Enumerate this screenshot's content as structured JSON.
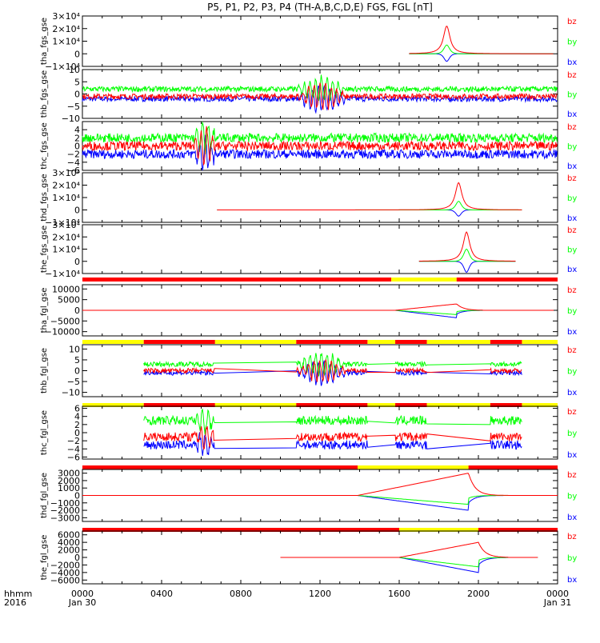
{
  "title": "P5, P1, P2, P3, P4 (TH-A,B,C,D,E) FGS, FGL [nT]",
  "colors": {
    "bz": "#ff0000",
    "by": "#00ff00",
    "bx": "#0000ff",
    "yellow": "#ffff00",
    "red": "#ff0000"
  },
  "chart_data": [
    {
      "type": "line",
      "ylabel": "tha_fgs_gse",
      "ylim": [
        -10000,
        30000
      ],
      "ytick_labels": [
        "3×10⁴",
        "2×10⁴",
        "1×10⁴",
        "0",
        "−1×10⁴"
      ],
      "ytick_values": [
        30000,
        20000,
        10000,
        0,
        -10000
      ],
      "legend": [
        "bz",
        "by",
        "bx"
      ],
      "kind": "spike",
      "center_hour": 18.4,
      "width_hours": 0.8,
      "start_hour": 16.5,
      "end_hour": 23.8,
      "peak": {
        "bz": 22000,
        "by": 7000,
        "bx": -6000
      }
    },
    {
      "type": "line",
      "ylabel": "thb_fgs_gse",
      "ylim": [
        -10,
        10
      ],
      "ytick_labels": [
        "10",
        "5",
        "0",
        "−5",
        "−10"
      ],
      "ytick_values": [
        10,
        5,
        0,
        -5,
        -10
      ],
      "legend": [
        "bz",
        "by",
        "bx"
      ],
      "kind": "noisy",
      "start_hour": 0,
      "end_hour": 24,
      "baseline": {
        "by": 2,
        "bz": -1,
        "bx": -2
      },
      "osc": {
        "from": 10.8,
        "to": 13.4,
        "amp": 5
      }
    },
    {
      "type": "line",
      "ylabel": "thc_fgs_gse",
      "ylim": [
        -6,
        6
      ],
      "ytick_labels": [
        "4",
        "2",
        "0",
        "−2",
        "−4",
        "−6"
      ],
      "ytick_values": [
        4,
        2,
        0,
        -2,
        -4,
        -6
      ],
      "legend": [
        "bz",
        "by",
        "bx"
      ],
      "kind": "noisy",
      "start_hour": 0,
      "end_hour": 24,
      "baseline": {
        "by": 2,
        "bz": 0,
        "bx": -2
      },
      "osc": {
        "from": 5.6,
        "to": 6.8,
        "amp": 4
      }
    },
    {
      "type": "line",
      "ylabel": "thd_fgs_gse",
      "ylim": [
        -10000,
        30000
      ],
      "ytick_labels": [
        "3×10⁴",
        "2×10⁴",
        "1×10⁴",
        "0",
        "−1×10⁴"
      ],
      "ytick_values": [
        30000,
        20000,
        10000,
        0,
        -10000
      ],
      "legend": [
        "bz",
        "by",
        "bx"
      ],
      "kind": "spike",
      "center_hour": 19.0,
      "width_hours": 0.8,
      "start_hour": 6.8,
      "end_hour": 22.2,
      "peak": {
        "bz": 22000,
        "by": 7000,
        "bx": -5000
      }
    },
    {
      "type": "line",
      "ylabel": "the_fgs_gse",
      "ylim": [
        -10000,
        30000
      ],
      "ytick_labels": [
        "3×10⁴",
        "2×10⁴",
        "1×10⁴",
        "0",
        "−1×10⁴"
      ],
      "ytick_values": [
        30000,
        20000,
        10000,
        0,
        -10000
      ],
      "legend": [
        "bz",
        "by",
        "bx"
      ],
      "kind": "spike",
      "center_hour": 19.4,
      "width_hours": 0.8,
      "start_hour": 17.0,
      "end_hour": 21.9,
      "peak": {
        "bz": 24000,
        "by": 10000,
        "bx": -9000
      }
    },
    {
      "type": "line",
      "ylabel": "tha_fgl_gse",
      "ylim": [
        -12000,
        12000
      ],
      "ytick_labels": [
        "10000",
        "5000",
        "0",
        "−5000",
        "−10000"
      ],
      "ytick_values": [
        10000,
        5000,
        0,
        -5000,
        -10000
      ],
      "legend": [
        "bz",
        "by",
        "bx"
      ],
      "kind": "ramp",
      "start_hour": 0,
      "end_hour": 23.8,
      "ramp_from": 15.8,
      "ramp_to": 18.9,
      "after_to": 20.2,
      "peak": {
        "bz": 3000,
        "by": -2000,
        "bx": -3500
      },
      "bar": [
        {
          "from": 0,
          "to": 15.6,
          "color": "red"
        },
        {
          "from": 15.6,
          "to": 18.9,
          "color": "yellow"
        },
        {
          "from": 18.9,
          "to": 24,
          "color": "red"
        }
      ]
    },
    {
      "type": "line",
      "ylabel": "thb_fgl_gse",
      "ylim": [
        -12,
        12
      ],
      "ytick_labels": [
        "10",
        "5",
        "0",
        "−5",
        "−10"
      ],
      "ytick_values": [
        10,
        5,
        0,
        -5,
        -10
      ],
      "legend": [
        "bz",
        "by",
        "bx"
      ],
      "kind": "gapped",
      "start_hour": 3.1,
      "end_hour": 22.2,
      "segments": [
        [
          3.1,
          6.7
        ],
        [
          10.8,
          14.4
        ],
        [
          15.8,
          17.4
        ],
        [
          20.6,
          22.2
        ]
      ],
      "osc": {
        "from": 10.8,
        "to": 13.4,
        "amp": 5
      },
      "baseline": {
        "by": 3,
        "bz": 0,
        "bx": -1
      },
      "bar": [
        {
          "from": 0,
          "to": 3.1,
          "color": "yellow"
        },
        {
          "from": 3.1,
          "to": 6.7,
          "color": "red"
        },
        {
          "from": 6.7,
          "to": 10.8,
          "color": "yellow"
        },
        {
          "from": 10.8,
          "to": 14.4,
          "color": "red"
        },
        {
          "from": 14.4,
          "to": 15.8,
          "color": "yellow"
        },
        {
          "from": 15.8,
          "to": 17.4,
          "color": "red"
        },
        {
          "from": 17.4,
          "to": 20.6,
          "color": "yellow"
        },
        {
          "from": 20.6,
          "to": 22.2,
          "color": "red"
        },
        {
          "from": 22.2,
          "to": 24,
          "color": "yellow"
        }
      ]
    },
    {
      "type": "line",
      "ylabel": "thc_fgl_gse",
      "ylim": [
        -6.5,
        6.5
      ],
      "ytick_labels": [
        "6",
        "4",
        "2",
        "0",
        "−2",
        "−4",
        "−6"
      ],
      "ytick_values": [
        6,
        4,
        2,
        0,
        -2,
        -4,
        -6
      ],
      "legend": [
        "bz",
        "by",
        "bx"
      ],
      "kind": "gapped",
      "start_hour": 3.1,
      "end_hour": 22.2,
      "segments": [
        [
          3.1,
          6.7
        ],
        [
          10.8,
          14.4
        ],
        [
          15.8,
          17.4
        ],
        [
          20.6,
          22.2
        ]
      ],
      "osc": {
        "from": 5.6,
        "to": 6.7,
        "amp": 3
      },
      "baseline": {
        "by": 3,
        "bz": -1,
        "bx": -3
      },
      "bar": [
        {
          "from": 0,
          "to": 3.1,
          "color": "yellow"
        },
        {
          "from": 3.1,
          "to": 6.7,
          "color": "red"
        },
        {
          "from": 6.7,
          "to": 10.8,
          "color": "yellow"
        },
        {
          "from": 10.8,
          "to": 14.4,
          "color": "red"
        },
        {
          "from": 14.4,
          "to": 15.8,
          "color": "yellow"
        },
        {
          "from": 15.8,
          "to": 17.4,
          "color": "red"
        },
        {
          "from": 17.4,
          "to": 20.6,
          "color": "yellow"
        },
        {
          "from": 20.6,
          "to": 22.2,
          "color": "red"
        },
        {
          "from": 22.2,
          "to": 24,
          "color": "yellow"
        }
      ]
    },
    {
      "type": "line",
      "ylabel": "thd_fgl_gse",
      "ylim": [
        -3500,
        3500
      ],
      "ytick_labels": [
        "3000",
        "2000",
        "1000",
        "0",
        "−1000",
        "−2000",
        "−3000"
      ],
      "ytick_values": [
        3000,
        2000,
        1000,
        0,
        -1000,
        -2000,
        -3000
      ],
      "legend": [
        "bz",
        "by",
        "bx"
      ],
      "kind": "ramp",
      "start_hour": 0,
      "end_hour": 24,
      "ramp_from": 13.9,
      "ramp_to": 19.5,
      "after_to": 21.5,
      "peak": {
        "bz": 3000,
        "by": -1200,
        "bx": -2000
      },
      "bar": [
        {
          "from": 0,
          "to": 13.9,
          "color": "red"
        },
        {
          "from": 13.9,
          "to": 19.5,
          "color": "yellow"
        },
        {
          "from": 19.5,
          "to": 24,
          "color": "red"
        }
      ]
    },
    {
      "type": "line",
      "ylabel": "the_fgl_gse",
      "ylim": [
        -7000,
        7000
      ],
      "ytick_labels": [
        "6000",
        "4000",
        "2000",
        "0",
        "−2000",
        "−4000",
        "−6000"
      ],
      "ytick_values": [
        6000,
        4000,
        2000,
        0,
        -2000,
        -4000,
        -6000
      ],
      "legend": [
        "bz",
        "by",
        "bx"
      ],
      "kind": "ramp",
      "start_hour": 10.0,
      "end_hour": 23.0,
      "ramp_from": 16.0,
      "ramp_to": 20.0,
      "after_to": 21.5,
      "peak": {
        "bz": 4000,
        "by": -2500,
        "bx": -4000
      },
      "bar": [
        {
          "from": 0,
          "to": 16.0,
          "color": "red"
        },
        {
          "from": 16.0,
          "to": 20.0,
          "color": "yellow"
        },
        {
          "from": 20.0,
          "to": 24,
          "color": "red"
        }
      ]
    }
  ],
  "xaxis": {
    "xlim_hours": [
      0,
      24
    ],
    "ticks": [
      {
        "hour": 0,
        "label": "0000"
      },
      {
        "hour": 4,
        "label": "0400"
      },
      {
        "hour": 8,
        "label": "0800"
      },
      {
        "hour": 12,
        "label": "1200"
      },
      {
        "hour": 16,
        "label": "1600"
      },
      {
        "hour": 20,
        "label": "2000"
      },
      {
        "hour": 24,
        "label": "0000"
      }
    ],
    "date_start": "Jan 30",
    "date_end": "Jan 31",
    "row_label_1": "hhmm",
    "row_label_2": "2016"
  }
}
